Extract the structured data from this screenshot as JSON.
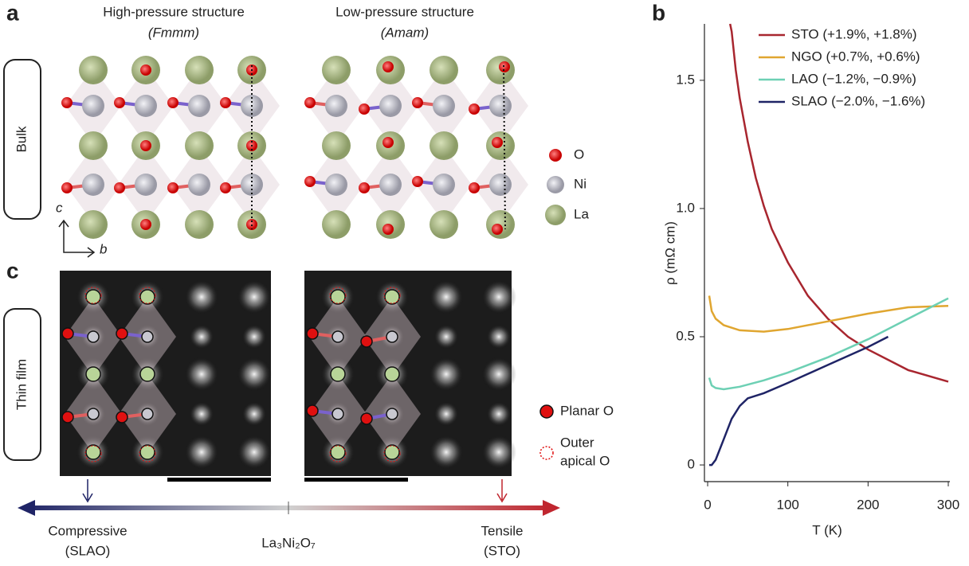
{
  "panel_a": {
    "label": "a",
    "structures": [
      {
        "title": "High-pressure structure",
        "group": "(Fmmm)"
      },
      {
        "title": "Low-pressure structure",
        "group": "(Amam)"
      }
    ],
    "row_label": "Bulk",
    "legend": [
      "O",
      "Ni",
      "La"
    ],
    "axes": [
      "c",
      "b"
    ]
  },
  "panel_c": {
    "label": "c",
    "row_label": "Thin film",
    "legend": [
      "Planar O",
      "Outer",
      "apical O"
    ],
    "scale": [
      {
        "text": "Compressive",
        "sub": "(SLAO)"
      },
      {
        "text": "La₃Ni₂O₇"
      },
      {
        "text": "Tensile",
        "sub": "(STO)"
      }
    ]
  },
  "chart_data": {
    "type": "line",
    "label": "b",
    "xlabel": "T (K)",
    "ylabel": "ρ (mΩ cm)",
    "xlim": [
      -4,
      302
    ],
    "ylim": [
      -0.065,
      1.72
    ],
    "xticks": [
      0,
      100,
      200,
      300
    ],
    "yticks": [
      0,
      0.5,
      {
        "value": 1,
        "label": "1.0"
      },
      1.5
    ],
    "series": [
      {
        "name": "STO (+1.9%, +1.8%)",
        "color": "#a8262f",
        "x": [
          28,
          30,
          35,
          40,
          50,
          60,
          70,
          80,
          100,
          125,
          150,
          175,
          200,
          250,
          300
        ],
        "values": [
          1.72,
          1.69,
          1.54,
          1.43,
          1.26,
          1.12,
          1.01,
          0.92,
          0.79,
          0.66,
          0.57,
          0.5,
          0.45,
          0.37,
          0.325
        ]
      },
      {
        "name": "NGO (+0.7%, +0.6%)",
        "color": "#e0a630",
        "x": [
          2,
          5,
          10,
          20,
          40,
          70,
          100,
          150,
          200,
          250,
          300
        ],
        "values": [
          0.66,
          0.6,
          0.57,
          0.545,
          0.525,
          0.52,
          0.53,
          0.56,
          0.59,
          0.615,
          0.62
        ]
      },
      {
        "name": "LAO (−1.2%, −0.9%)",
        "color": "#6dd0b4",
        "x": [
          2,
          5,
          10,
          20,
          40,
          70,
          100,
          150,
          200,
          250,
          300
        ],
        "values": [
          0.34,
          0.31,
          0.3,
          0.295,
          0.305,
          0.33,
          0.36,
          0.42,
          0.49,
          0.57,
          0.65
        ]
      },
      {
        "name": "SLAO (−2.0%, −1.6%)",
        "color": "#1f2466",
        "x": [
          2,
          5,
          10,
          20,
          30,
          40,
          50,
          70,
          100,
          150,
          200,
          225
        ],
        "values": [
          0,
          0,
          0.02,
          0.1,
          0.18,
          0.23,
          0.26,
          0.28,
          0.32,
          0.39,
          0.46,
          0.5
        ]
      }
    ]
  }
}
